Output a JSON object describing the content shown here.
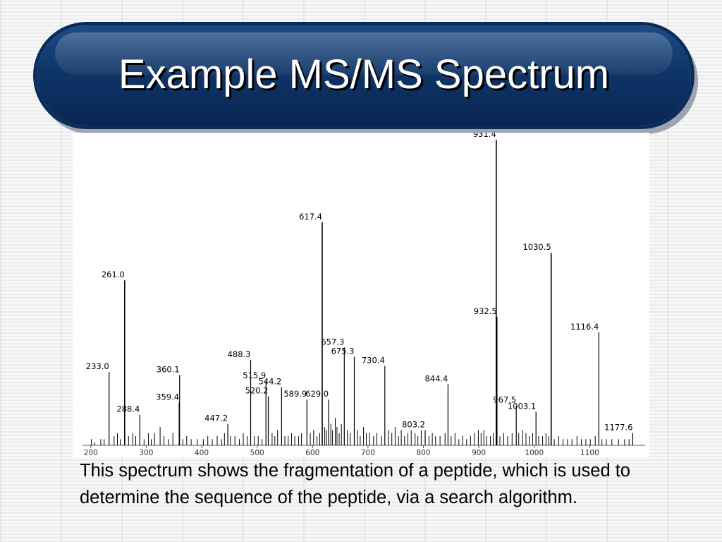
{
  "slide": {
    "title": "Example MS/MS Spectrum",
    "caption": "This spectrum shows the fragmentation of a peptide, which is used to determine the sequence of the peptide, via a search algorithm."
  },
  "colors": {
    "banner": "#0f3567",
    "peak": "#000000",
    "text": "#000000"
  },
  "chart_data": {
    "type": "bar",
    "xlim": [
      185,
      1200
    ],
    "ylim": [
      0,
      100
    ],
    "grid": false,
    "title": "",
    "xlabel": "",
    "ylabel": "",
    "xticks": [
      "200",
      "300",
      "400",
      "500",
      "600",
      "700",
      "800",
      "900",
      "1000",
      "1100"
    ],
    "labeled_peaks": [
      {
        "mz": 233.0,
        "intensity": 24
      },
      {
        "mz": 261.0,
        "intensity": 54
      },
      {
        "mz": 288.4,
        "intensity": 10
      },
      {
        "mz": 359.4,
        "intensity": 14
      },
      {
        "mz": 360.1,
        "intensity": 23
      },
      {
        "mz": 447.2,
        "intensity": 7
      },
      {
        "mz": 488.3,
        "intensity": 28
      },
      {
        "mz": 515.9,
        "intensity": 21
      },
      {
        "mz": 520.2,
        "intensity": 16
      },
      {
        "mz": 544.2,
        "intensity": 19
      },
      {
        "mz": 589.9,
        "intensity": 15
      },
      {
        "mz": 617.4,
        "intensity": 73
      },
      {
        "mz": 629.0,
        "intensity": 15
      },
      {
        "mz": 657.3,
        "intensity": 32
      },
      {
        "mz": 675.3,
        "intensity": 29
      },
      {
        "mz": 730.4,
        "intensity": 26
      },
      {
        "mz": 803.2,
        "intensity": 5
      },
      {
        "mz": 844.4,
        "intensity": 20
      },
      {
        "mz": 931.4,
        "intensity": 100
      },
      {
        "mz": 932.5,
        "intensity": 42
      },
      {
        "mz": 967.5,
        "intensity": 13
      },
      {
        "mz": 1003.1,
        "intensity": 11
      },
      {
        "mz": 1030.5,
        "intensity": 63
      },
      {
        "mz": 1116.4,
        "intensity": 37
      },
      {
        "mz": 1177.6,
        "intensity": 4
      }
    ],
    "minor_peaks": [
      [
        201,
        2
      ],
      [
        207,
        1
      ],
      [
        218,
        2
      ],
      [
        224,
        2
      ],
      [
        242,
        3
      ],
      [
        248,
        4
      ],
      [
        253,
        2
      ],
      [
        268,
        3
      ],
      [
        276,
        4
      ],
      [
        281,
        3
      ],
      [
        296,
        2
      ],
      [
        304,
        4
      ],
      [
        309,
        2
      ],
      [
        315,
        4
      ],
      [
        325,
        6
      ],
      [
        332,
        3
      ],
      [
        340,
        2
      ],
      [
        348,
        4
      ],
      [
        366,
        2
      ],
      [
        373,
        3
      ],
      [
        381,
        2
      ],
      [
        392,
        2
      ],
      [
        403,
        2
      ],
      [
        411,
        3
      ],
      [
        419,
        2
      ],
      [
        428,
        3
      ],
      [
        436,
        2
      ],
      [
        441,
        4
      ],
      [
        452,
        3
      ],
      [
        460,
        3
      ],
      [
        468,
        2
      ],
      [
        475,
        4
      ],
      [
        482,
        3
      ],
      [
        495,
        3
      ],
      [
        502,
        3
      ],
      [
        509,
        2
      ],
      [
        527,
        4
      ],
      [
        532,
        3
      ],
      [
        537,
        5
      ],
      [
        550,
        3
      ],
      [
        556,
        3
      ],
      [
        562,
        4
      ],
      [
        568,
        3
      ],
      [
        575,
        3
      ],
      [
        580,
        4
      ],
      [
        596,
        4
      ],
      [
        602,
        5
      ],
      [
        608,
        3
      ],
      [
        613,
        4
      ],
      [
        622,
        6
      ],
      [
        625,
        5
      ],
      [
        633,
        7
      ],
      [
        636,
        5
      ],
      [
        641,
        9
      ],
      [
        644,
        6
      ],
      [
        648,
        4
      ],
      [
        652,
        7
      ],
      [
        663,
        5
      ],
      [
        668,
        4
      ],
      [
        681,
        5
      ],
      [
        686,
        3
      ],
      [
        692,
        6
      ],
      [
        697,
        4
      ],
      [
        703,
        4
      ],
      [
        710,
        3
      ],
      [
        716,
        4
      ],
      [
        724,
        3
      ],
      [
        737,
        5
      ],
      [
        743,
        4
      ],
      [
        749,
        6
      ],
      [
        755,
        3
      ],
      [
        760,
        5
      ],
      [
        766,
        3
      ],
      [
        772,
        4
      ],
      [
        778,
        5
      ],
      [
        785,
        4
      ],
      [
        790,
        3
      ],
      [
        796,
        5
      ],
      [
        810,
        3
      ],
      [
        816,
        4
      ],
      [
        822,
        3
      ],
      [
        830,
        3
      ],
      [
        839,
        4
      ],
      [
        850,
        3
      ],
      [
        857,
        4
      ],
      [
        864,
        2
      ],
      [
        871,
        3
      ],
      [
        878,
        2
      ],
      [
        885,
        3
      ],
      [
        892,
        4
      ],
      [
        899,
        5
      ],
      [
        904,
        4
      ],
      [
        909,
        5
      ],
      [
        914,
        3
      ],
      [
        921,
        3
      ],
      [
        926,
        4
      ],
      [
        938,
        3
      ],
      [
        945,
        4
      ],
      [
        952,
        3
      ],
      [
        960,
        4
      ],
      [
        972,
        4
      ],
      [
        979,
        5
      ],
      [
        985,
        4
      ],
      [
        991,
        3
      ],
      [
        997,
        4
      ],
      [
        1008,
        3
      ],
      [
        1015,
        3
      ],
      [
        1021,
        4
      ],
      [
        1026,
        3
      ],
      [
        1036,
        2
      ],
      [
        1044,
        3
      ],
      [
        1052,
        2
      ],
      [
        1060,
        2
      ],
      [
        1068,
        2
      ],
      [
        1077,
        3
      ],
      [
        1085,
        2
      ],
      [
        1093,
        2
      ],
      [
        1101,
        2
      ],
      [
        1110,
        3
      ],
      [
        1122,
        2
      ],
      [
        1130,
        2
      ],
      [
        1140,
        2
      ],
      [
        1152,
        2
      ],
      [
        1163,
        2
      ],
      [
        1171,
        2
      ]
    ]
  }
}
